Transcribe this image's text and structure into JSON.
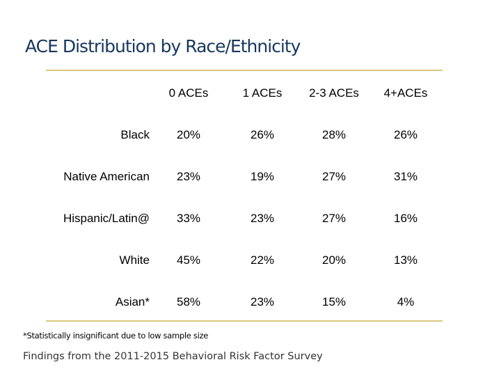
{
  "title": "ACE Distribution by Race/Ethnicity",
  "table": {
    "columns": [
      "0 ACEs",
      "1 ACEs",
      "2-3 ACEs",
      "4+ACEs"
    ],
    "rows": [
      {
        "label": "Black",
        "values": [
          "20%",
          "26%",
          "28%",
          "26%"
        ]
      },
      {
        "label": "Native American",
        "values": [
          "23%",
          "19%",
          "27%",
          "31%"
        ]
      },
      {
        "label": "Hispanic/Latin@",
        "values": [
          "33%",
          "23%",
          "27%",
          "16%"
        ]
      },
      {
        "label": "White",
        "values": [
          "45%",
          "22%",
          "20%",
          "13%"
        ]
      },
      {
        "label": "Asian*",
        "values": [
          "58%",
          "23%",
          "15%",
          "4%"
        ]
      }
    ]
  },
  "footnote": "*Statistically insignificant due to low sample size",
  "source": "Findings from the 2011-2015 Behavioral Risk Factor Survey",
  "colors": {
    "title": "#17375e",
    "rule": "#d9c77e"
  }
}
